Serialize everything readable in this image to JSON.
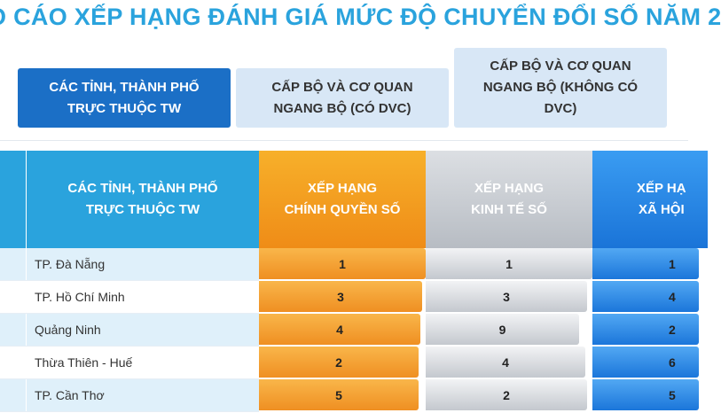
{
  "title": "O CÁO XẾP HẠNG ĐÁNH GIÁ MỨC ĐỘ CHUYỂN ĐỔI SỐ NĂM 2",
  "tabs": [
    {
      "label": "CÁC TỈNH, THÀNH PHỐ\nTRỰC THUỘC TW",
      "active": true
    },
    {
      "label": "CẤP BỘ VÀ CƠ QUAN\nNGANG BỘ (CÓ DVC)",
      "active": false
    },
    {
      "label": "CẤP BỘ VÀ CƠ QUAN\nNGANG BỘ (KHÔNG CÓ\nDVC)",
      "active": false
    }
  ],
  "table": {
    "headers": {
      "name": "CÁC TỈNH, THÀNH PHỐ\nTRỰC THUỘC TW",
      "gov": "XẾP HẠNG\nCHÍNH QUYỀN SỐ",
      "eco": "XẾP HẠNG\nKINH TẾ SỐ",
      "soc": "XẾP HẠ\nXÃ HỘI"
    },
    "colors": {
      "gov": "#ef8f22",
      "eco": "#c4c8ce",
      "soc": "#1b76da",
      "header": "#2aa3dd"
    },
    "rows": [
      {
        "name": "TP. Đà Nẵng",
        "gov": "1",
        "eco": "1",
        "soc": "1",
        "gov_fill": 1.0,
        "eco_fill": 1.0
      },
      {
        "name": "TP. Hồ Chí Minh",
        "gov": "3",
        "eco": "3",
        "soc": "4",
        "gov_fill": 0.98,
        "eco_fill": 0.97
      },
      {
        "name": "Quảng Ninh",
        "gov": "4",
        "eco": "9",
        "soc": "2",
        "gov_fill": 0.97,
        "eco_fill": 0.92
      },
      {
        "name": "Thừa Thiên - Huế",
        "gov": "2",
        "eco": "4",
        "soc": "6",
        "gov_fill": 0.96,
        "eco_fill": 0.96
      },
      {
        "name": "TP. Cần Thơ",
        "gov": "5",
        "eco": "2",
        "soc": "5",
        "gov_fill": 0.96,
        "eco_fill": 0.97
      }
    ]
  }
}
